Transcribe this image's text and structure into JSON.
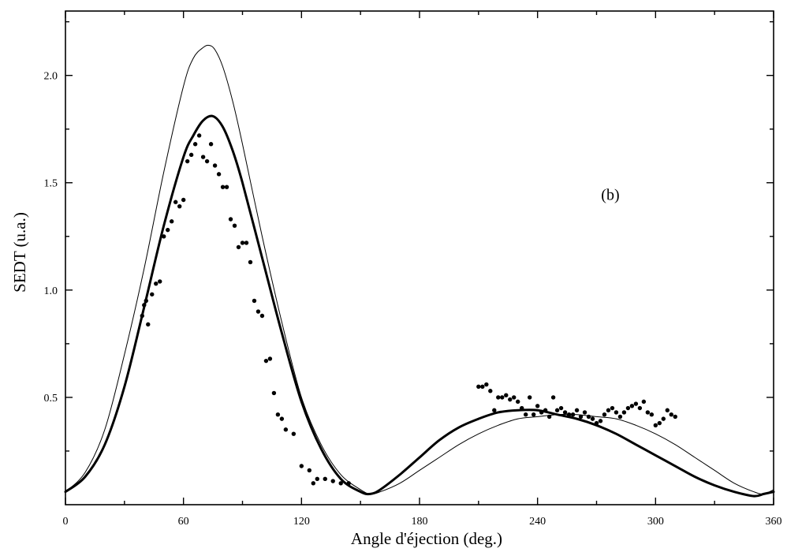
{
  "chart_data": {
    "type": "scatter",
    "title": "",
    "xlabel": "Angle d'éjection (deg.)",
    "ylabel": "SEDT (u.a.)",
    "xlim": [
      0,
      360
    ],
    "ylim": [
      0,
      2.3
    ],
    "xticks": [
      0,
      60,
      120,
      180,
      240,
      300,
      360
    ],
    "xtick_labels": [
      "0",
      "60",
      "120",
      "180",
      "240",
      "300",
      "360"
    ],
    "yticks": [
      0.5,
      1.0,
      1.5,
      2.0
    ],
    "ytick_labels": [
      "0.5",
      "1.0",
      "1.5",
      "2.0"
    ],
    "grid": false,
    "legend": "none",
    "annotations": [
      {
        "text": "(b)",
        "x": 277,
        "y": 1.42
      }
    ],
    "series": [
      {
        "style": "thin-line",
        "x": [
          0,
          10,
          20,
          30,
          40,
          50,
          60,
          65,
          70,
          73,
          76,
          80,
          85,
          90,
          100,
          110,
          120,
          130,
          140,
          150,
          155,
          160,
          170,
          180,
          190,
          200,
          210,
          220,
          230,
          240,
          250,
          260,
          270,
          280,
          290,
          300,
          310,
          320,
          330,
          340,
          350,
          355,
          360
        ],
        "y": [
          0.06,
          0.15,
          0.35,
          0.7,
          1.1,
          1.55,
          1.95,
          2.08,
          2.13,
          2.14,
          2.12,
          2.04,
          1.88,
          1.68,
          1.25,
          0.85,
          0.5,
          0.28,
          0.14,
          0.07,
          0.05,
          0.06,
          0.1,
          0.16,
          0.22,
          0.28,
          0.33,
          0.37,
          0.4,
          0.41,
          0.42,
          0.42,
          0.41,
          0.4,
          0.37,
          0.33,
          0.28,
          0.22,
          0.16,
          0.1,
          0.06,
          0.05,
          0.07
        ]
      },
      {
        "style": "thick-line",
        "x": [
          0,
          10,
          20,
          30,
          40,
          50,
          60,
          65,
          70,
          75,
          80,
          85,
          90,
          100,
          110,
          120,
          130,
          140,
          150,
          155,
          160,
          170,
          180,
          190,
          200,
          210,
          220,
          230,
          240,
          250,
          260,
          270,
          280,
          290,
          300,
          310,
          320,
          330,
          340,
          350,
          355,
          360
        ],
        "y": [
          0.06,
          0.13,
          0.28,
          0.55,
          0.92,
          1.3,
          1.62,
          1.72,
          1.79,
          1.81,
          1.76,
          1.65,
          1.5,
          1.15,
          0.8,
          0.48,
          0.26,
          0.12,
          0.06,
          0.05,
          0.07,
          0.14,
          0.22,
          0.3,
          0.36,
          0.4,
          0.43,
          0.44,
          0.44,
          0.42,
          0.4,
          0.37,
          0.33,
          0.28,
          0.23,
          0.18,
          0.13,
          0.09,
          0.06,
          0.04,
          0.05,
          0.06
        ]
      },
      {
        "style": "points",
        "x": [
          39,
          40,
          41,
          42,
          44,
          46,
          48,
          50,
          52,
          54,
          56,
          58,
          60,
          62,
          64,
          66,
          68,
          70,
          72,
          74,
          76,
          78,
          80,
          82,
          84,
          86,
          88,
          90,
          92,
          94,
          96,
          98,
          100,
          102,
          104,
          106,
          108,
          110,
          112,
          116,
          120,
          124,
          126,
          128,
          132,
          136,
          140,
          144,
          210,
          212,
          214,
          216,
          218,
          220,
          222,
          224,
          226,
          228,
          230,
          232,
          234,
          236,
          238,
          240,
          242,
          244,
          246,
          248,
          250,
          252,
          254,
          256,
          258,
          260,
          262,
          264,
          266,
          268,
          270,
          272,
          274,
          276,
          278,
          280,
          282,
          284,
          286,
          288,
          290,
          292,
          294,
          296,
          298,
          300,
          302,
          304,
          306,
          308,
          310
        ],
        "y": [
          0.88,
          0.93,
          0.95,
          0.84,
          0.98,
          1.03,
          1.04,
          1.25,
          1.28,
          1.32,
          1.41,
          1.39,
          1.42,
          1.6,
          1.63,
          1.68,
          1.72,
          1.62,
          1.6,
          1.68,
          1.58,
          1.54,
          1.48,
          1.48,
          1.33,
          1.3,
          1.2,
          1.22,
          1.22,
          1.13,
          0.95,
          0.9,
          0.88,
          0.67,
          0.68,
          0.52,
          0.42,
          0.4,
          0.35,
          0.33,
          0.18,
          0.16,
          0.1,
          0.12,
          0.12,
          0.11,
          0.1,
          0.1,
          0.55,
          0.55,
          0.56,
          0.53,
          0.44,
          0.5,
          0.5,
          0.51,
          0.49,
          0.5,
          0.48,
          0.45,
          0.42,
          0.5,
          0.42,
          0.46,
          0.43,
          0.44,
          0.41,
          0.5,
          0.44,
          0.45,
          0.43,
          0.42,
          0.42,
          0.44,
          0.41,
          0.43,
          0.41,
          0.4,
          0.38,
          0.39,
          0.42,
          0.44,
          0.45,
          0.43,
          0.41,
          0.43,
          0.45,
          0.46,
          0.47,
          0.45,
          0.48,
          0.43,
          0.42,
          0.37,
          0.38,
          0.4,
          0.44,
          0.42,
          0.41
        ]
      }
    ]
  }
}
